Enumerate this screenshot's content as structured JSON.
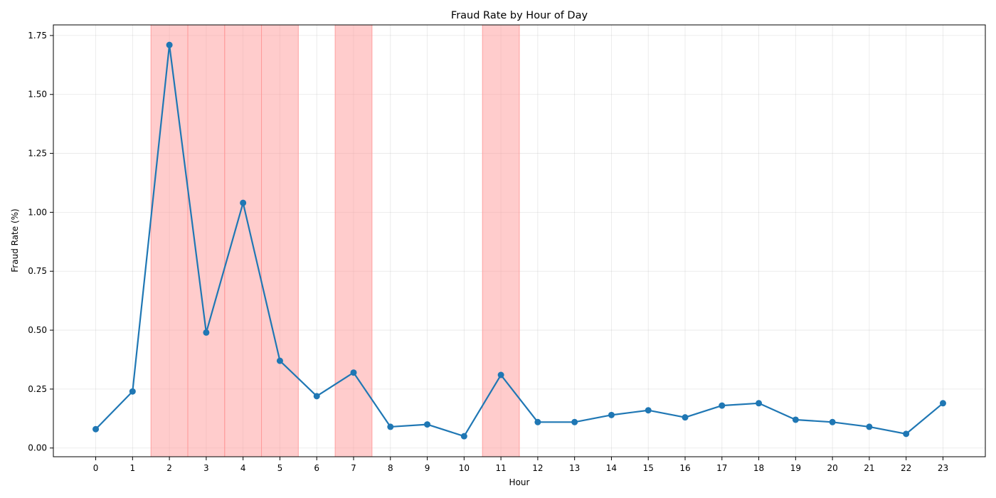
{
  "chart_data": {
    "type": "line",
    "title": "Fraud Rate by Hour of Day",
    "xlabel": "Hour",
    "ylabel": "Fraud Rate (%)",
    "x": [
      0,
      1,
      2,
      3,
      4,
      5,
      6,
      7,
      8,
      9,
      10,
      11,
      12,
      13,
      14,
      15,
      16,
      17,
      18,
      19,
      20,
      21,
      22,
      23
    ],
    "series": [
      {
        "values": [
          0.08,
          0.24,
          1.71,
          0.49,
          1.04,
          0.37,
          0.22,
          0.32,
          0.09,
          0.1,
          0.05,
          0.31,
          0.11,
          0.11,
          0.14,
          0.16,
          0.13,
          0.18,
          0.19,
          0.12,
          0.11,
          0.09,
          0.06,
          0.19
        ],
        "color": "#1f77b4",
        "marker": "circle"
      }
    ],
    "highlight_hours": [
      2,
      3,
      4,
      5,
      7,
      11
    ],
    "highlight_color": "#ff9999",
    "xticks": [
      "0",
      "1",
      "2",
      "3",
      "4",
      "5",
      "6",
      "7",
      "8",
      "9",
      "10",
      "11",
      "12",
      "13",
      "14",
      "15",
      "16",
      "17",
      "18",
      "19",
      "20",
      "21",
      "22",
      "23"
    ],
    "yticks": [
      "0.00",
      "0.25",
      "0.50",
      "0.75",
      "1.00",
      "1.25",
      "1.50",
      "1.75"
    ],
    "xlim": [
      -1.15,
      24.15
    ],
    "ylim": [
      -0.037,
      1.795
    ],
    "grid": true
  }
}
